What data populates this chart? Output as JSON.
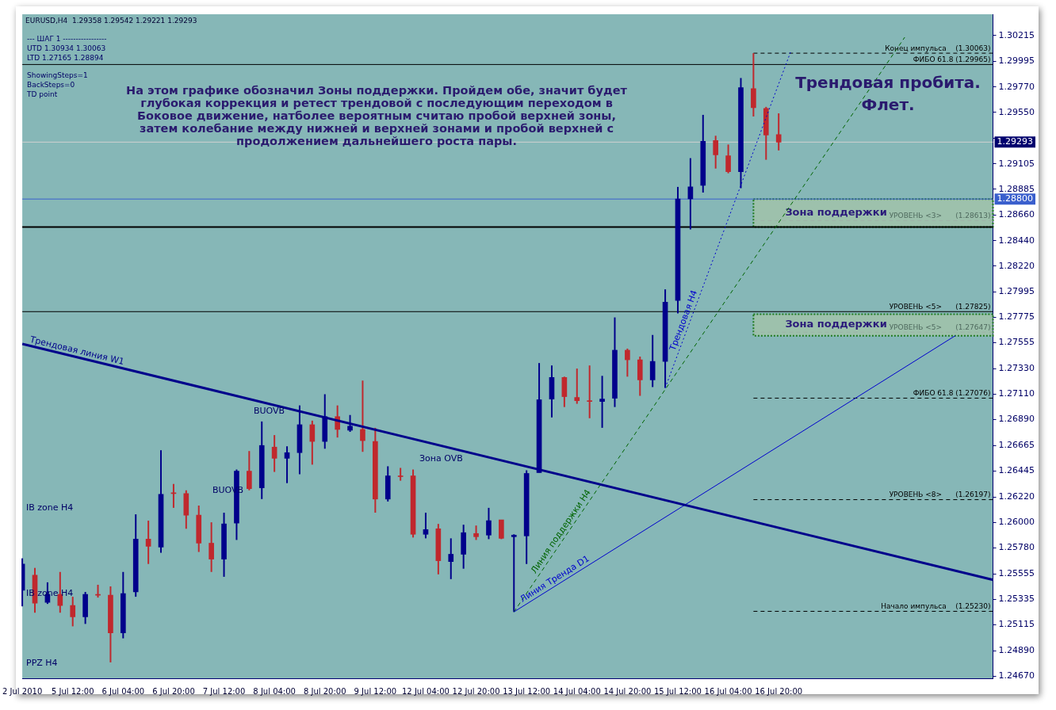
{
  "chart_data": {
    "type": "candlestick",
    "title": "EURUSD,H4  1.29358 1.29542 1.29221 1.29293",
    "categories": [
      "2 Jul 2010",
      null,
      null,
      null,
      "5 Jul 12:00",
      null,
      null,
      null,
      "6 Jul 04:00",
      null,
      null,
      null,
      "6 Jul 20:00",
      null,
      null,
      null,
      "7 Jul 12:00",
      null,
      null,
      null,
      "8 Jul 04:00",
      null,
      null,
      null,
      "8 Jul 20:00",
      null,
      null,
      null,
      "9 Jul 12:00",
      null,
      null,
      null,
      "12 Jul 04:00",
      null,
      null,
      null,
      "12 Jul 20:00",
      null,
      null,
      null,
      "13 Jul 12:00",
      null,
      null,
      null,
      "14 Jul 04:00",
      null,
      null,
      null,
      "14 Jul 20:00",
      null,
      null,
      null,
      "15 Jul 12:00",
      null,
      null,
      null,
      "16 Jul 04:00",
      null,
      null,
      null,
      "16 Jul 20:00",
      null,
      null,
      null,
      null,
      null,
      null,
      null,
      null,
      null,
      null,
      null,
      null,
      null,
      null,
      null,
      null,
      null
    ],
    "ohlc": [
      [
        1.25412,
        1.25689,
        1.25273,
        1.2564
      ],
      [
        1.25543,
        1.25606,
        1.25218,
        1.25301
      ],
      [
        1.25308,
        1.25481,
        1.25294,
        1.25377
      ],
      [
        1.25377,
        1.25571,
        1.25218,
        1.2528
      ],
      [
        1.2528,
        1.25356,
        1.251,
        1.25183
      ],
      [
        1.25183,
        1.25398,
        1.25121,
        1.25377
      ],
      [
        1.25377,
        1.2546,
        1.25349,
        1.2537
      ],
      [
        1.2537,
        1.25446,
        1.24788,
        1.25044
      ],
      [
        1.25044,
        1.25571,
        1.24996,
        1.25384
      ],
      [
        1.25398,
        1.2607,
        1.25356,
        1.25855
      ],
      [
        1.25855,
        1.26015,
        1.2564,
        1.25793
      ],
      [
        1.25786,
        1.26625,
        1.25737,
        1.26243
      ],
      [
        1.26257,
        1.26333,
        1.26126,
        1.2625
      ],
      [
        1.2625,
        1.26278,
        1.25945,
        1.26063
      ],
      [
        1.26063,
        1.26146,
        1.25744,
        1.2582
      ],
      [
        1.2582,
        1.26001,
        1.25571,
        1.25682
      ],
      [
        1.25682,
        1.26084,
        1.25529,
        1.25987
      ],
      [
        1.25994,
        1.26458,
        1.25848,
        1.26444
      ],
      [
        1.26444,
        1.26618,
        1.26278,
        1.26292
      ],
      [
        1.26299,
        1.26874,
        1.26202,
        1.26666
      ],
      [
        1.26652,
        1.26756,
        1.26437,
        1.26555
      ],
      [
        1.26555,
        1.26659,
        1.2634,
        1.26604
      ],
      [
        1.26604,
        1.27013,
        1.26417,
        1.26846
      ],
      [
        1.26846,
        1.26881,
        1.265,
        1.26701
      ],
      [
        1.26701,
        1.2711,
        1.26638,
        1.26916
      ],
      [
        1.26916,
        1.27013,
        1.26735,
        1.26805
      ],
      [
        1.26798,
        1.2693,
        1.26784,
        1.26833
      ],
      [
        1.26805,
        1.27228,
        1.26611,
        1.26708
      ],
      [
        1.26701,
        1.26819,
        1.26084,
        1.26202
      ],
      [
        1.26202,
        1.26486,
        1.26181,
        1.26403
      ],
      [
        1.26403,
        1.26472,
        1.26361,
        1.26396
      ],
      [
        1.26403,
        1.26458,
        1.25869,
        1.25897
      ],
      [
        1.25897,
        1.26084,
        1.25862,
        1.25938
      ],
      [
        1.25945,
        1.25987,
        1.2555,
        1.25668
      ],
      [
        1.25661,
        1.25862,
        1.25509,
        1.25724
      ],
      [
        1.25724,
        1.2598,
        1.25599,
        1.25911
      ],
      [
        1.25904,
        1.25973,
        1.25848,
        1.25876
      ],
      [
        1.2589,
        1.26126,
        1.25855,
        1.26015
      ],
      [
        1.26022,
        1.26022,
        1.25855,
        1.25862
      ],
      [
        1.25876,
        1.25897,
        1.25225,
        1.2589
      ],
      [
        1.25883,
        1.26451,
        1.2564,
        1.26424
      ],
      [
        1.26431,
        1.2738,
        1.26431,
        1.27062
      ],
      [
        1.27068,
        1.27359,
        1.26909,
        1.27255
      ],
      [
        1.27255,
        1.27262,
        1.26999,
        1.27089
      ],
      [
        1.27082,
        1.27332,
        1.27027,
        1.27054
      ],
      [
        1.27054,
        1.27359,
        1.26902,
        1.27047
      ],
      [
        1.27047,
        1.27269,
        1.26819,
        1.27068
      ],
      [
        1.27075,
        1.27775,
        1.26999,
        1.27491
      ],
      [
        1.27491,
        1.27505,
        1.27262,
        1.27408
      ],
      [
        1.27408,
        1.27436,
        1.27096,
        1.27234
      ],
      [
        1.27234,
        1.27623,
        1.27172,
        1.27394
      ],
      [
        1.27394,
        1.28018,
        1.27165,
        1.27907
      ],
      [
        1.27921,
        1.28905,
        1.2781,
        1.28801
      ],
      [
        1.28801,
        1.29154,
        1.28537,
        1.28905
      ],
      [
        1.28919,
        1.29529,
        1.28856,
        1.293
      ],
      [
        1.29307,
        1.29348,
        1.29064,
        1.29182
      ],
      [
        1.29175,
        1.29272,
        1.29023,
        1.29037
      ],
      [
        1.29037,
        1.29848,
        1.28894,
        1.29764
      ],
      [
        1.29757,
        1.30063,
        1.29515,
        1.29591
      ],
      [
        1.29584,
        1.29598,
        1.2914,
        1.29355
      ],
      [
        1.29358,
        1.29542,
        1.29221,
        1.29293
      ],
      null,
      null,
      null,
      null,
      null,
      null,
      null,
      null,
      null,
      null,
      null,
      null,
      null,
      null,
      null,
      null,
      null
    ],
    "colors": [
      "#00008b",
      "#c0282d",
      "#00008b",
      "#c0282d",
      "#c0282d",
      "#00008b",
      "#c0282d",
      "#c0282d",
      "#00008b",
      "#00008b",
      "#c0282d",
      "#00008b",
      "#c0282d",
      "#c0282d",
      "#c0282d",
      "#c0282d",
      "#00008b",
      "#00008b",
      "#c0282d",
      "#00008b",
      "#c0282d",
      "#00008b",
      "#00008b",
      "#c0282d",
      "#00008b",
      "#c0282d",
      "#00008b",
      "#c0282d",
      "#c0282d",
      "#00008b",
      "#c0282d",
      "#c0282d",
      "#00008b",
      "#c0282d",
      "#00008b",
      "#00008b",
      "#c0282d",
      "#00008b",
      "#c0282d",
      "#00008b",
      "#00008b",
      "#00008b",
      "#00008b",
      "#c0282d",
      "#c0282d",
      "#c0282d",
      "#00008b",
      "#00008b",
      "#c0282d",
      "#c0282d",
      "#00008b",
      "#00008b",
      "#00008b",
      "#00008b",
      "#00008b",
      "#c0282d",
      "#c0282d",
      "#00008b",
      "#c0282d",
      "#c0282d",
      "#c0282d",
      null,
      null,
      null,
      null,
      null,
      null,
      null,
      null,
      null,
      null,
      null,
      null,
      null,
      null,
      null,
      null,
      null
    ],
    "series": [
      {
        "name": "Трендовая линия W1",
        "type": "line",
        "color": "#00008b",
        "line_style": "solid",
        "values": [
          1.27546,
          null,
          null,
          null,
          null,
          null,
          null,
          null,
          null,
          null,
          null,
          null,
          null,
          null,
          null,
          null,
          null,
          null,
          null,
          null,
          null,
          null,
          null,
          null,
          null,
          null,
          null,
          null,
          null,
          null,
          null,
          null,
          null,
          null,
          null,
          null,
          null,
          null,
          null,
          null,
          null,
          null,
          null,
          null,
          null,
          null,
          null,
          null,
          null,
          null,
          null,
          null,
          null,
          null,
          null,
          null,
          null,
          null,
          null,
          null,
          null,
          null,
          null,
          null,
          null,
          null,
          null,
          null,
          null,
          null,
          null,
          null,
          null,
          null,
          null,
          null,
          null,
          1.25502
        ]
      },
      {
        "name": "Линия Тренда D1",
        "type": "line",
        "color": "#0000cd",
        "line_style": "solid",
        "values": [
          null,
          null,
          null,
          null,
          null,
          null,
          null,
          null,
          null,
          null,
          null,
          null,
          null,
          null,
          null,
          null,
          null,
          null,
          null,
          null,
          null,
          null,
          null,
          null,
          null,
          null,
          null,
          null,
          null,
          null,
          null,
          null,
          null,
          null,
          null,
          null,
          null,
          null,
          null,
          1.25225,
          null,
          null,
          null,
          null,
          null,
          null,
          null,
          null,
          null,
          null,
          null,
          null,
          null,
          null,
          null,
          null,
          null,
          null,
          null,
          null,
          null,
          null,
          null,
          null,
          null,
          null,
          null,
          null,
          null,
          null,
          null,
          null,
          null,
          null,
          1.27616,
          null,
          null,
          null
        ]
      },
      {
        "name": "Линия поддержки H4",
        "type": "line",
        "color": "#006400",
        "line_style": "dashed",
        "values": [
          null,
          null,
          null,
          null,
          null,
          null,
          null,
          null,
          null,
          null,
          null,
          null,
          null,
          null,
          null,
          null,
          null,
          null,
          null,
          null,
          null,
          null,
          null,
          null,
          null,
          null,
          null,
          null,
          null,
          null,
          null,
          null,
          null,
          null,
          null,
          null,
          null,
          null,
          null,
          1.25225,
          null,
          null,
          null,
          null,
          null,
          null,
          null,
          null,
          null,
          null,
          null,
          null,
          null,
          null,
          null,
          null,
          null,
          null,
          null,
          null,
          null,
          null,
          null,
          null,
          null,
          null,
          null,
          null,
          null,
          null,
          1.30201,
          null,
          null,
          null,
          null,
          null,
          null,
          null
        ]
      },
      {
        "name": "Трендовая H4",
        "type": "line",
        "color": "#0000cd",
        "line_style": "dotted",
        "values": [
          null,
          null,
          null,
          null,
          null,
          null,
          null,
          null,
          null,
          null,
          null,
          null,
          null,
          null,
          null,
          null,
          null,
          null,
          null,
          null,
          null,
          null,
          null,
          null,
          null,
          null,
          null,
          null,
          null,
          null,
          null,
          null,
          null,
          null,
          null,
          null,
          null,
          null,
          null,
          null,
          null,
          null,
          null,
          null,
          null,
          null,
          null,
          null,
          null,
          null,
          null,
          1.27165,
          null,
          null,
          null,
          null,
          null,
          null,
          null,
          null,
          null,
          1.3009,
          null,
          null,
          null,
          null,
          null,
          null,
          null,
          null,
          null,
          null,
          null,
          null,
          null,
          null,
          null,
          null
        ]
      }
    ],
    "ylim": [
      1.2465,
      1.304
    ],
    "yticks": [
      {
        "value": 1.2467,
        "label": "1.24670"
      },
      {
        "value": 1.2489,
        "label": "1.24890"
      },
      {
        "value": 1.25115,
        "label": "1.25115"
      },
      {
        "value": 1.25335,
        "label": "1.25335"
      },
      {
        "value": 1.25555,
        "label": "1.25555"
      },
      {
        "value": 1.2578,
        "label": "1.25780"
      },
      {
        "value": 1.26,
        "label": "1.26000"
      },
      {
        "value": 1.2622,
        "label": "1.26220"
      },
      {
        "value": 1.26445,
        "label": "1.26445"
      },
      {
        "value": 1.26665,
        "label": "1.26665"
      },
      {
        "value": 1.2689,
        "label": "1.26890"
      },
      {
        "value": 1.2711,
        "label": "1.27110"
      },
      {
        "value": 1.2733,
        "label": "1.27330"
      },
      {
        "value": 1.27555,
        "label": "1.27555"
      },
      {
        "value": 1.27775,
        "label": "1.27775"
      },
      {
        "value": 1.27995,
        "label": "1.27995"
      },
      {
        "value": 1.2822,
        "label": "1.28220"
      },
      {
        "value": 1.2844,
        "label": "1.28440"
      },
      {
        "value": 1.2866,
        "label": "1.28660"
      },
      {
        "value": 1.28885,
        "label": "1.28885"
      },
      {
        "value": 1.29105,
        "label": "1.29105"
      },
      {
        "value": 1.29325,
        "label": null
      },
      {
        "value": 1.2955,
        "label": "1.29550"
      },
      {
        "value": 1.2977,
        "label": "1.29770"
      },
      {
        "value": 1.29995,
        "label": "1.29995"
      },
      {
        "value": 1.30215,
        "label": "1.30215"
      }
    ],
    "ref_lines": [
      {
        "axis": "y",
        "value": 1.30063,
        "label": "Конец импульса    (1.30063)",
        "color": "#000000",
        "line_style": "dashed"
      },
      {
        "axis": "y",
        "value": 1.29965,
        "label": "ФИБО 61.8 (1.29965)",
        "color": "#000000",
        "line_style": "solid"
      },
      {
        "axis": "y",
        "value": 1.29293,
        "label": "1.29293",
        "color": "#d0d0d0",
        "line_style": "solid"
      },
      {
        "axis": "y",
        "value": 1.288,
        "label": "1.28800",
        "color": "#3a5fcd",
        "line_style": "solid"
      },
      {
        "axis": "y",
        "value": 1.28613,
        "label": "УРОВЕНЬ <3>      (1.28613)",
        "color": "#9db3a8",
        "line_style": "dashed"
      },
      {
        "axis": "y",
        "value": 1.28557,
        "color": "#000000",
        "line_style": "solid"
      },
      {
        "axis": "y",
        "value": 1.27825,
        "label": "УРОВЕНЬ <5>      (1.27825)",
        "color": "#000000",
        "line_style": "solid"
      },
      {
        "axis": "y",
        "value": 1.27647,
        "label": "УРОВЕНЬ <5>      (1.27647)",
        "color": "#9db3a8",
        "line_style": "dashed"
      },
      {
        "axis": "y",
        "value": 1.27076,
        "label": "ФИБО 61.8 (1.27076)",
        "color": "#000000",
        "line_style": "dashed"
      },
      {
        "axis": "y",
        "value": 1.26197,
        "label": "УРОВЕНЬ <8>      (1.26197)",
        "color": "#000000",
        "line_style": "dashed"
      },
      {
        "axis": "y",
        "value": 1.2523,
        "label": "Начало импульса    (1.25230)",
        "color": "#000000",
        "line_style": "dashed"
      }
    ],
    "bands": [
      {
        "axis": "y",
        "from": 1.28557,
        "to": 1.288,
        "label": "Зона поддержки",
        "color": "#a6c4a6"
      },
      {
        "axis": "y",
        "from": 1.27616,
        "to": 1.27803,
        "label": "Зона поддержки",
        "color": "#a6c4a6"
      }
    ],
    "annotations": [
      "---  ШАГ 1  -----------------",
      "UTD  1.30934  1.30063",
      "LTD  1.27165  1.28894",
      "ShowingSteps=1",
      "BackSteps=0",
      "TD point",
      "На этом графике обозначил Зоны поддержки. Пройдем обе, значит будет глубокая коррекция и ретест трендовой с последующим переходом в Боковое движение, натболее вероятным считаю пробой верхней зоны, затем колебание между нижней и верхней зонами и пробой верхней с продолжением дальнейшего роста пары.",
      "Трендовая пробита.",
      "Флет.",
      "BUOVB",
      "BUOVB",
      "IB zone H4",
      "IB zone H4",
      "Зона OVB",
      "PPZ H4"
    ],
    "grid": false,
    "legend": false,
    "marker": "none"
  }
}
